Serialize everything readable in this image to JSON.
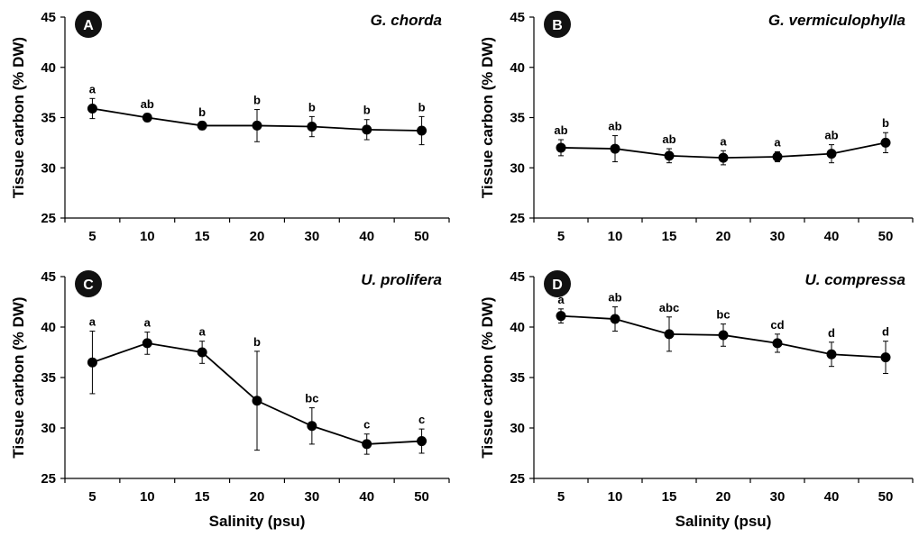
{
  "chart_data": [
    {
      "type": "line",
      "panel": "A",
      "title": "G. chorda",
      "ylabel": "Tissue carbon (% DW)",
      "xlabel": "",
      "ylim": [
        25,
        45
      ],
      "yticks": [
        "25",
        "30",
        "35",
        "40",
        "45"
      ],
      "categories": [
        "5",
        "10",
        "15",
        "20",
        "30",
        "40",
        "50"
      ],
      "values": [
        35.9,
        35.0,
        34.2,
        34.2,
        34.1,
        33.8,
        33.7
      ],
      "errors": [
        1.0,
        0.4,
        0.4,
        1.6,
        1.0,
        1.0,
        1.4
      ],
      "letters": [
        "a",
        "ab",
        "b",
        "b",
        "b",
        "b",
        "b"
      ]
    },
    {
      "type": "line",
      "panel": "B",
      "title": "G. vermiculophylla",
      "ylabel": "Tissue carbon (% DW)",
      "xlabel": "",
      "ylim": [
        25,
        45
      ],
      "yticks": [
        "25",
        "30",
        "35",
        "40",
        "45"
      ],
      "categories": [
        "5",
        "10",
        "15",
        "20",
        "30",
        "40",
        "50"
      ],
      "values": [
        32.0,
        31.9,
        31.2,
        31.0,
        31.1,
        31.4,
        32.5
      ],
      "errors": [
        0.8,
        1.3,
        0.7,
        0.7,
        0.5,
        0.9,
        1.0
      ],
      "letters": [
        "ab",
        "ab",
        "ab",
        "a",
        "a",
        "ab",
        "b"
      ]
    },
    {
      "type": "line",
      "panel": "C",
      "title": "U. prolifera",
      "ylabel": "Tissue carbon (% DW)",
      "xlabel": "Salinity (psu)",
      "ylim": [
        25,
        45
      ],
      "yticks": [
        "25",
        "30",
        "35",
        "40",
        "45"
      ],
      "categories": [
        "5",
        "10",
        "15",
        "20",
        "30",
        "40",
        "50"
      ],
      "values": [
        36.5,
        38.4,
        37.5,
        32.7,
        30.2,
        28.4,
        28.7
      ],
      "errors": [
        3.1,
        1.1,
        1.1,
        4.9,
        1.8,
        1.0,
        1.2
      ],
      "letters": [
        "a",
        "a",
        "a",
        "b",
        "bc",
        "c",
        "c"
      ]
    },
    {
      "type": "line",
      "panel": "D",
      "title": "U. compressa",
      "ylabel": "Tissue carbon (% DW)",
      "xlabel": "Salinity (psu)",
      "ylim": [
        25,
        45
      ],
      "yticks": [
        "25",
        "30",
        "35",
        "40",
        "45"
      ],
      "categories": [
        "5",
        "10",
        "15",
        "20",
        "30",
        "40",
        "50"
      ],
      "values": [
        41.1,
        40.8,
        39.3,
        39.2,
        38.4,
        37.3,
        37.0
      ],
      "errors": [
        0.7,
        1.2,
        1.7,
        1.1,
        0.9,
        1.2,
        1.6
      ],
      "letters": [
        "a",
        "ab",
        "abc",
        "bc",
        "cd",
        "d",
        "d"
      ]
    }
  ]
}
